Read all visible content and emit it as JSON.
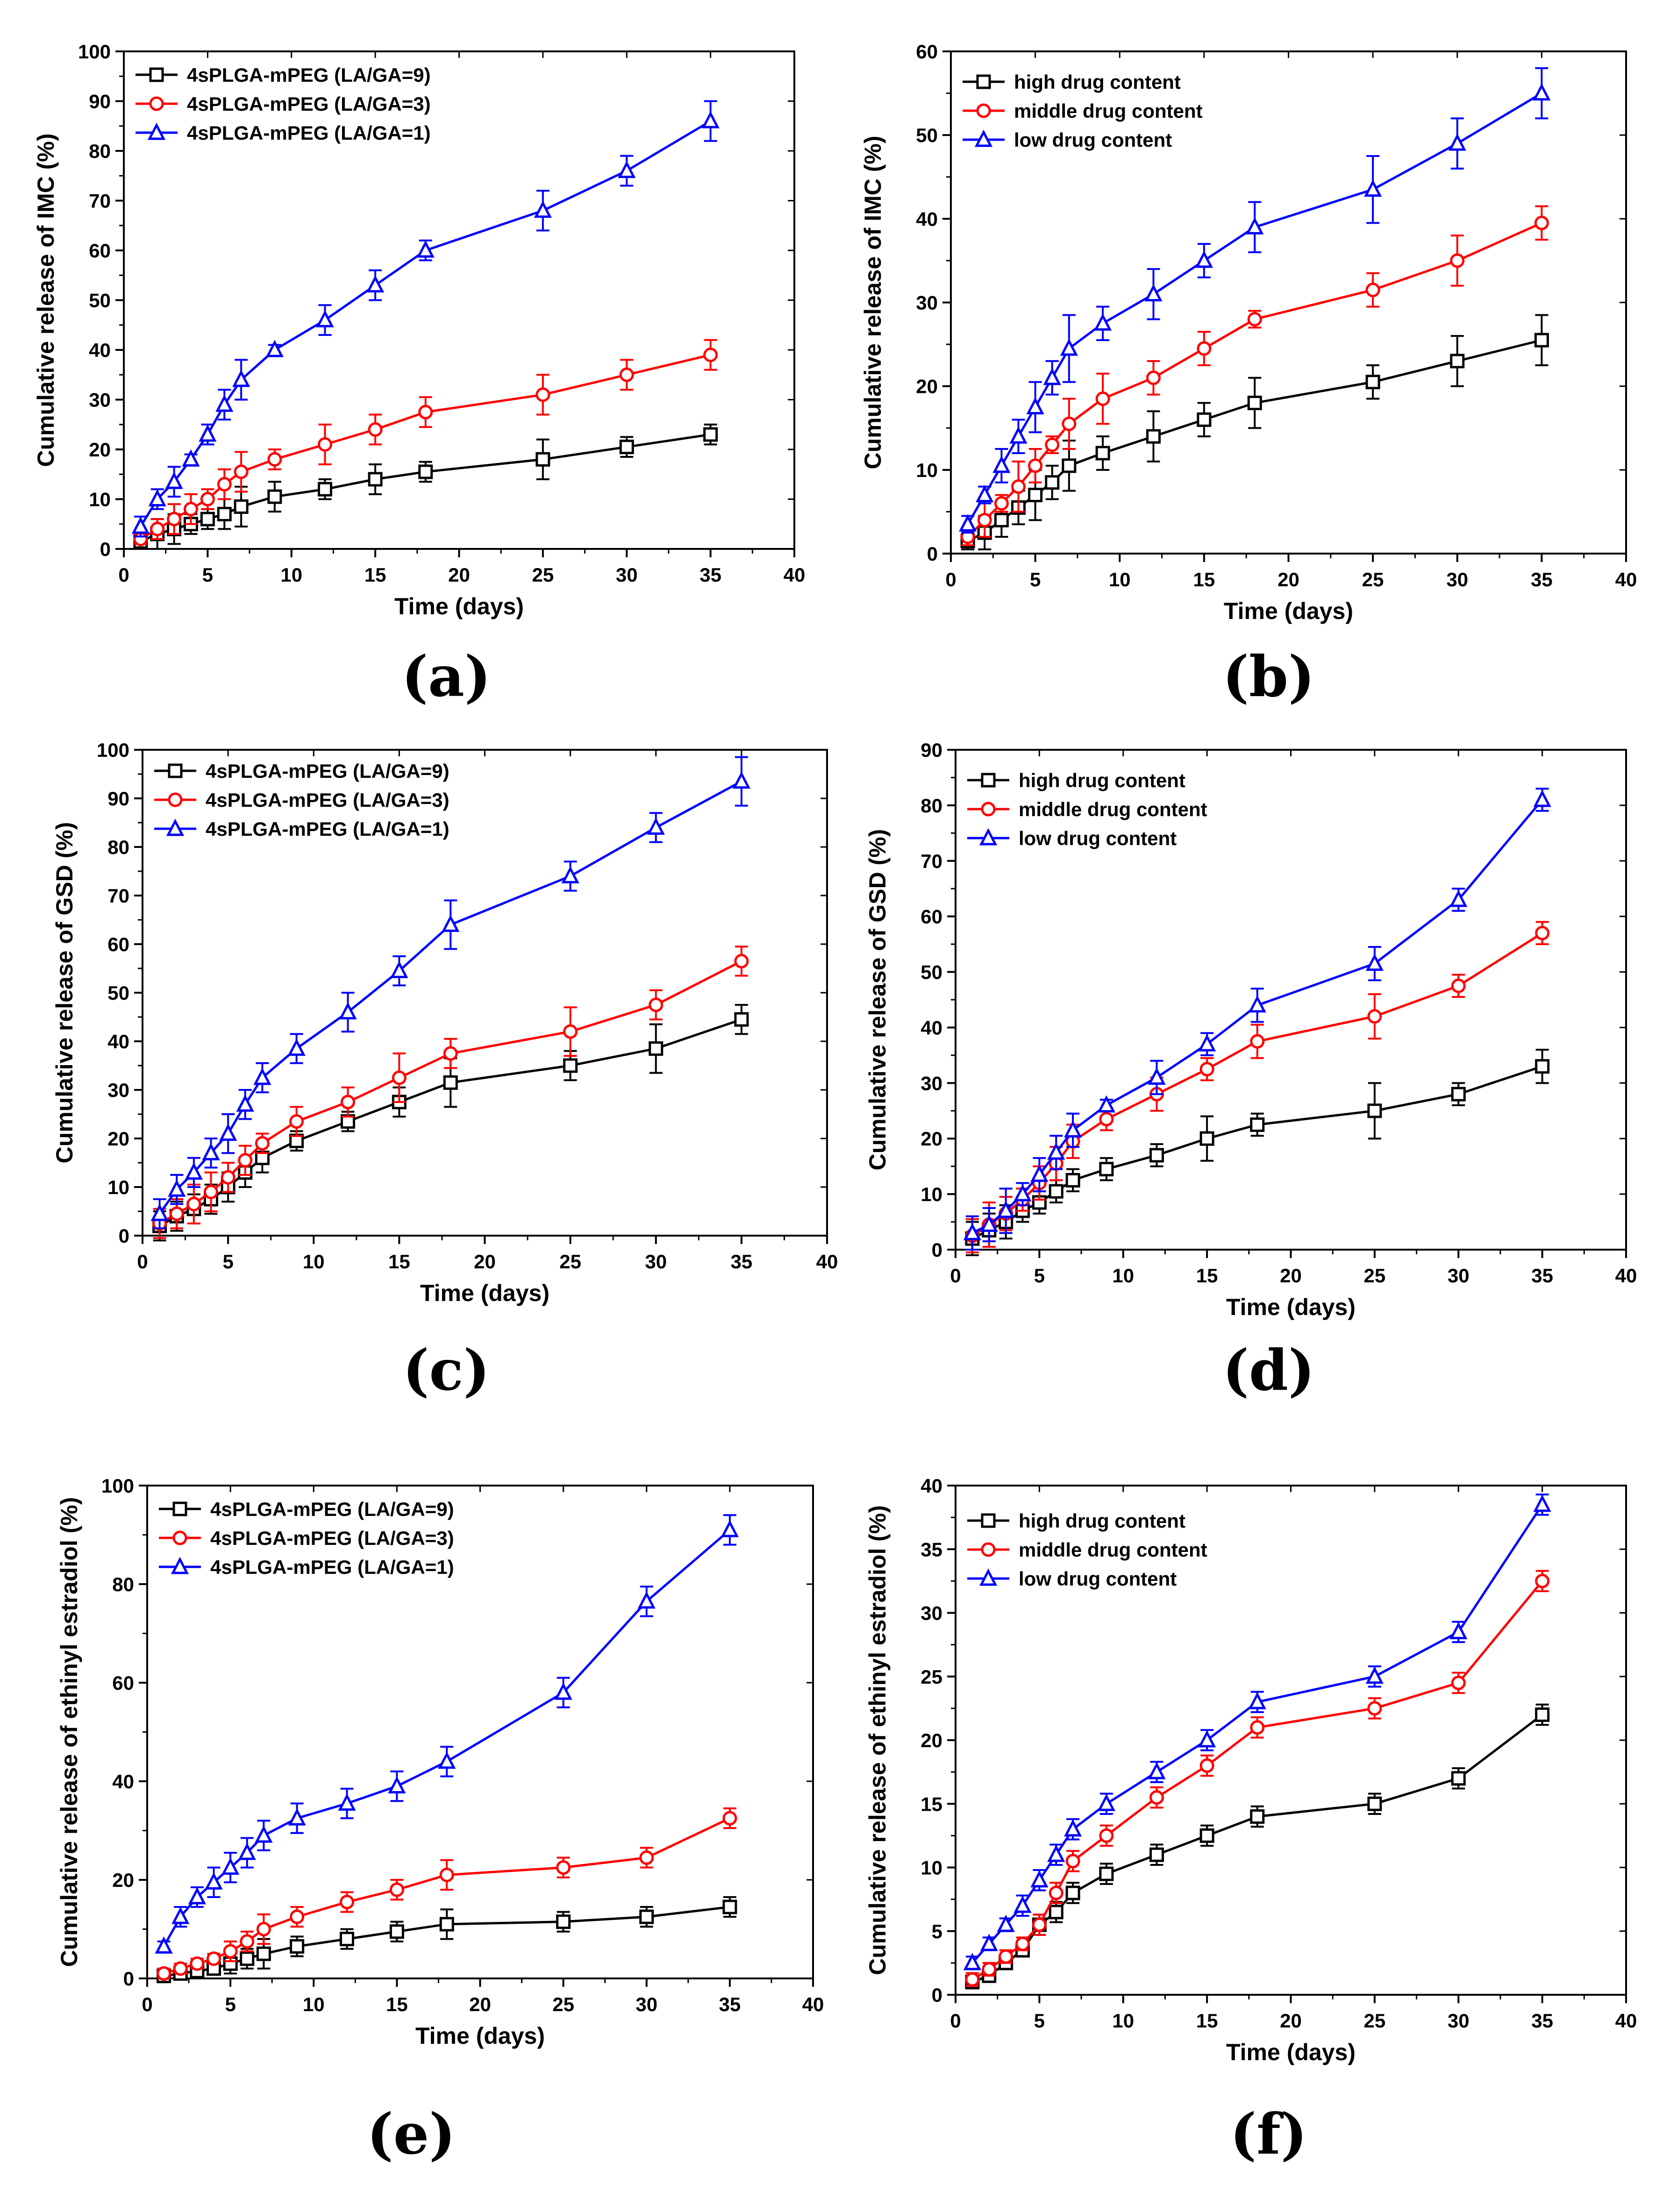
{
  "figure": {
    "colors": {
      "black": "#000000",
      "red": "#ff0000",
      "blue": "#0000ff"
    }
  },
  "chart_data": [
    {
      "id": "a",
      "type": "line",
      "label": "(a)",
      "xlabel": "Time (days)",
      "ylabel": "Cumulative release of IMC (%)",
      "xlim": [
        0,
        40
      ],
      "ylim": [
        0,
        100
      ],
      "xticks": [
        0,
        5,
        10,
        15,
        20,
        25,
        30,
        35,
        40
      ],
      "yticks": [
        0,
        10,
        20,
        30,
        40,
        50,
        60,
        70,
        80,
        90,
        100
      ],
      "legend_position": "top-left",
      "x": [
        1,
        2,
        3,
        4,
        5,
        6,
        7,
        9,
        12,
        15,
        18,
        25,
        30,
        35
      ],
      "series": [
        {
          "name": "4sPLGA-mPEG (LA/GA=9)",
          "marker": "square",
          "color": "#000000",
          "values": [
            1.5,
            3,
            4,
            5,
            6,
            7,
            8.5,
            10.5,
            12,
            14,
            15.5,
            18,
            20.5,
            23
          ],
          "errors": [
            1,
            3,
            3,
            2,
            2,
            3,
            4,
            3,
            2,
            3,
            2,
            4,
            2,
            2
          ]
        },
        {
          "name": "4sPLGA-mPEG (LA/GA=3)",
          "marker": "circle",
          "color": "#ff0000",
          "values": [
            2,
            4,
            6,
            8,
            10,
            13,
            15.5,
            18,
            21,
            24,
            27.5,
            31,
            35,
            39
          ],
          "errors": [
            1,
            2,
            3,
            3,
            2,
            3,
            4,
            2,
            4,
            3,
            3,
            4,
            3,
            3
          ]
        },
        {
          "name": "4sPLGA-mPEG (LA/GA=1)",
          "marker": "triangle",
          "color": "#0000ff",
          "values": [
            4.5,
            10,
            13.5,
            18,
            23,
            29,
            34,
            40,
            46,
            53,
            60,
            68,
            76,
            86
          ],
          "errors": [
            2,
            2,
            3,
            1,
            2,
            3,
            4,
            1,
            3,
            3,
            2,
            4,
            3,
            4
          ]
        }
      ]
    },
    {
      "id": "b",
      "type": "line",
      "label": "(b)",
      "xlabel": "Time (days)",
      "ylabel": "Cumulative release of IMC (%)",
      "xlim": [
        0,
        40
      ],
      "ylim": [
        0,
        60
      ],
      "xticks": [
        0,
        5,
        10,
        15,
        20,
        25,
        30,
        35,
        40
      ],
      "yticks": [
        0,
        10,
        20,
        30,
        40,
        50,
        60
      ],
      "legend_position": "top-left",
      "x": [
        1,
        2,
        3,
        4,
        5,
        6,
        7,
        9,
        12,
        15,
        18,
        25,
        30,
        35
      ],
      "series": [
        {
          "name": "high drug content",
          "marker": "square",
          "color": "#000000",
          "values": [
            1.5,
            2.5,
            4,
            5.5,
            7,
            8.5,
            10.5,
            12,
            14,
            16,
            18,
            20.5,
            23,
            25.5
          ],
          "errors": [
            1,
            2,
            2,
            2,
            3,
            2,
            3,
            2,
            3,
            2,
            3,
            2,
            3,
            3
          ]
        },
        {
          "name": "middle drug content",
          "marker": "circle",
          "color": "#ff0000",
          "values": [
            2,
            4,
            6,
            8,
            10.5,
            13,
            15.5,
            18.5,
            21,
            24.5,
            28,
            31.5,
            35,
            39.5
          ],
          "errors": [
            1,
            2,
            1,
            3,
            2,
            1,
            3,
            3,
            2,
            2,
            1,
            2,
            3,
            2
          ]
        },
        {
          "name": "low drug content",
          "marker": "triangle",
          "color": "#0000ff",
          "values": [
            3.5,
            7,
            10.5,
            14,
            17.5,
            21,
            24.5,
            27.5,
            31,
            35,
            39,
            43.5,
            49,
            55
          ],
          "errors": [
            1,
            1,
            2,
            2,
            3,
            2,
            4,
            2,
            3,
            2,
            3,
            4,
            3,
            3
          ]
        }
      ]
    },
    {
      "id": "c",
      "type": "line",
      "label": "(c)",
      "xlabel": "Time (days)",
      "ylabel": "Cumulative release of GSD (%)",
      "xlim": [
        0,
        40
      ],
      "ylim": [
        0,
        100
      ],
      "xticks": [
        0,
        5,
        10,
        15,
        20,
        25,
        30,
        35,
        40
      ],
      "yticks": [
        0,
        10,
        20,
        30,
        40,
        50,
        60,
        70,
        80,
        90,
        100
      ],
      "legend_position": "top-left",
      "x": [
        1,
        2,
        3,
        4,
        5,
        6,
        7,
        9,
        12,
        15,
        18,
        25,
        30,
        35
      ],
      "series": [
        {
          "name": "4sPLGA-mPEG (LA/GA=9)",
          "marker": "square",
          "color": "#000000",
          "values": [
            2,
            4,
            5.5,
            7.5,
            10,
            13,
            16,
            19.5,
            23.5,
            27.5,
            31.5,
            35,
            38.5,
            44.5
          ],
          "errors": [
            3,
            3,
            3,
            3,
            3,
            3,
            3,
            2,
            2,
            3,
            5,
            3,
            5,
            3
          ]
        },
        {
          "name": "4sPLGA-mPEG (LA/GA=3)",
          "marker": "circle",
          "color": "#ff0000",
          "values": [
            2.5,
            4.5,
            6.5,
            9,
            12,
            15.5,
            19,
            23.5,
            27.5,
            32.5,
            37.5,
            42,
            47.5,
            56.5
          ],
          "errors": [
            3,
            3,
            4,
            4,
            3,
            3,
            2,
            3,
            3,
            5,
            3,
            5,
            3,
            3
          ]
        },
        {
          "name": "4sPLGA-mPEG (LA/GA=1)",
          "marker": "triangle",
          "color": "#0000ff",
          "values": [
            4.5,
            9.5,
            13,
            17,
            21,
            27,
            32.5,
            38.5,
            46,
            54.5,
            64,
            74,
            84,
            93.5
          ],
          "errors": [
            3,
            3,
            3,
            3,
            4,
            3,
            3,
            3,
            4,
            3,
            5,
            3,
            3,
            5
          ]
        }
      ]
    },
    {
      "id": "d",
      "type": "line",
      "label": "(d)",
      "xlabel": "Time (days)",
      "ylabel": "Cumulative release of GSD (%)",
      "xlim": [
        0,
        40
      ],
      "ylim": [
        0,
        90
      ],
      "xticks": [
        0,
        5,
        10,
        15,
        20,
        25,
        30,
        35,
        40
      ],
      "yticks": [
        0,
        10,
        20,
        30,
        40,
        50,
        60,
        70,
        80,
        90
      ],
      "legend_position": "top-left",
      "x": [
        1,
        2,
        3,
        4,
        5,
        6,
        7,
        9,
        12,
        15,
        18,
        25,
        30,
        35
      ],
      "series": [
        {
          "name": "high drug content",
          "marker": "square",
          "color": "#000000",
          "values": [
            2,
            3.5,
            5,
            7,
            8.5,
            10.5,
            12.5,
            14.5,
            17,
            20,
            22.5,
            25,
            28,
            33
          ],
          "errors": [
            3,
            3,
            3,
            2,
            2,
            2,
            2,
            2,
            2,
            4,
            2,
            5,
            2,
            3
          ]
        },
        {
          "name": "middle drug content",
          "marker": "circle",
          "color": "#ff0000",
          "values": [
            2.5,
            4.5,
            6.5,
            9,
            12,
            15.5,
            19.5,
            23.5,
            28,
            32.5,
            37.5,
            42,
            47.5,
            57
          ],
          "errors": [
            3,
            4,
            3,
            2,
            3,
            3,
            3,
            2,
            3,
            2,
            3,
            4,
            2,
            2
          ]
        },
        {
          "name": "low drug content",
          "marker": "triangle",
          "color": "#0000ff",
          "values": [
            3,
            4.5,
            7,
            10,
            13.5,
            17.5,
            21.5,
            26,
            31,
            37,
            44,
            51.5,
            63,
            81
          ],
          "errors": [
            3,
            3,
            4,
            2,
            3,
            3,
            3,
            1,
            3,
            2,
            3,
            3,
            2,
            2
          ]
        }
      ]
    },
    {
      "id": "e",
      "type": "line",
      "label": "(e)",
      "xlabel": "Time (days)",
      "ylabel": "Cumulative release of ethinyl estradiol (%)",
      "xlim": [
        0,
        40
      ],
      "ylim": [
        0,
        100
      ],
      "xticks": [
        0,
        5,
        10,
        15,
        20,
        25,
        30,
        35,
        40
      ],
      "yticks": [
        0,
        20,
        40,
        60,
        80,
        100
      ],
      "legend_position": "top-left",
      "x": [
        1,
        2,
        3,
        4,
        5,
        6,
        7,
        9,
        12,
        15,
        18,
        25,
        30,
        35
      ],
      "series": [
        {
          "name": "4sPLGA-mPEG (LA/GA=9)",
          "marker": "square",
          "color": "#000000",
          "values": [
            0.5,
            1,
            1.5,
            2,
            3,
            4,
            5,
            6.5,
            8,
            9.5,
            11,
            11.5,
            12.5,
            14.5
          ],
          "errors": [
            1,
            1,
            1,
            1,
            2,
            2,
            3,
            2,
            2,
            2,
            3,
            2,
            2,
            2
          ]
        },
        {
          "name": "4sPLGA-mPEG (LA/GA=3)",
          "marker": "circle",
          "color": "#ff0000",
          "values": [
            1,
            2,
            3,
            4,
            5.5,
            7.5,
            10,
            12.5,
            15.5,
            18,
            21,
            22.5,
            24.5,
            32.5
          ],
          "errors": [
            1,
            1,
            1,
            1,
            2,
            2,
            3,
            2,
            2,
            2,
            3,
            2,
            2,
            2
          ]
        },
        {
          "name": "4sPLGA-mPEG (LA/GA=1)",
          "marker": "triangle",
          "color": "#0000ff",
          "values": [
            6.5,
            12.5,
            16.5,
            19.5,
            22.5,
            25.5,
            29,
            32.5,
            35.5,
            39,
            44,
            58,
            76.5,
            91
          ],
          "errors": [
            1,
            2,
            2,
            3,
            3,
            3,
            3,
            3,
            3,
            3,
            3,
            3,
            3,
            3
          ]
        }
      ]
    },
    {
      "id": "f",
      "type": "line",
      "label": "(f)",
      "xlabel": "Time (days)",
      "ylabel": "Cumulative release of ethinyl estradiol (%)",
      "xlim": [
        0,
        40
      ],
      "ylim": [
        0,
        40
      ],
      "xticks": [
        0,
        5,
        10,
        15,
        20,
        25,
        30,
        35,
        40
      ],
      "yticks": [
        0,
        5,
        10,
        15,
        20,
        25,
        30,
        35,
        40
      ],
      "legend_position": "top-left",
      "x": [
        1,
        2,
        3,
        4,
        5,
        6,
        7,
        9,
        12,
        15,
        18,
        25,
        30,
        35
      ],
      "series": [
        {
          "name": "high drug content",
          "marker": "square",
          "color": "#000000",
          "values": [
            1,
            1.5,
            2.5,
            3.5,
            5.5,
            6.5,
            8,
            9.5,
            11,
            12.5,
            14,
            15,
            17,
            22
          ],
          "errors": [
            0.5,
            0.5,
            0.5,
            0.5,
            0.8,
            0.8,
            0.8,
            0.8,
            0.8,
            0.8,
            0.8,
            0.8,
            0.8,
            0.8
          ]
        },
        {
          "name": "middle drug content",
          "marker": "circle",
          "color": "#ff0000",
          "values": [
            1.2,
            2,
            3,
            4,
            5.5,
            8,
            10.5,
            12.5,
            15.5,
            18,
            21,
            22.5,
            24.5,
            32.5
          ],
          "errors": [
            0.5,
            0.5,
            0.5,
            0.5,
            0.8,
            0.8,
            0.8,
            0.8,
            0.8,
            0.8,
            0.8,
            0.8,
            0.8,
            0.8
          ]
        },
        {
          "name": "low drug content",
          "marker": "triangle",
          "color": "#0000ff",
          "values": [
            2.5,
            4,
            5.5,
            7,
            9,
            11,
            13,
            15,
            17.5,
            20,
            23,
            25,
            28.5,
            38.5
          ],
          "errors": [
            0.5,
            0.5,
            0.5,
            0.8,
            0.8,
            0.8,
            0.8,
            0.8,
            0.8,
            0.8,
            0.8,
            0.8,
            0.8,
            0.8
          ]
        }
      ]
    }
  ]
}
